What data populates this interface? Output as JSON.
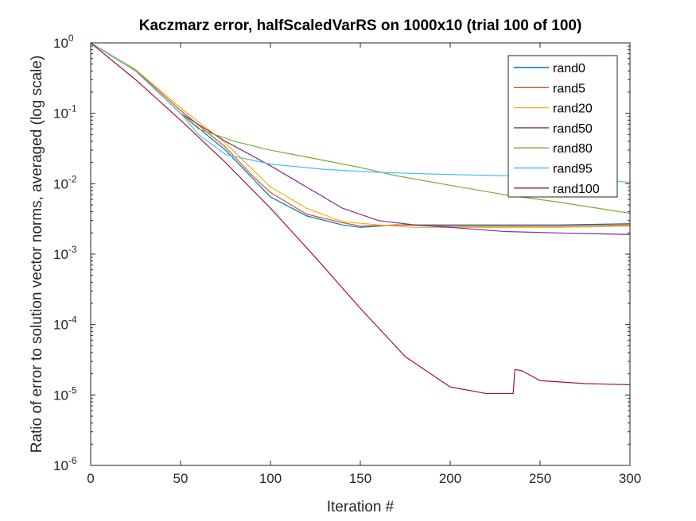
{
  "chart_data": {
    "type": "line",
    "title": "Kaczmarz error, halfScaledVarRS on 1000x10 (trial 100 of 100)",
    "xlabel": "Iteration #",
    "ylabel": "Ratio of error to solution vector norms, averaged (log scale)",
    "xlim": [
      0,
      300
    ],
    "ylim": [
      1e-06,
      1
    ],
    "yscale": "log",
    "x_ticks": [
      "0",
      "50",
      "100",
      "150",
      "200",
      "250",
      "300"
    ],
    "y_ticks": [
      {
        "base": "10",
        "exp": "-6",
        "value": 1e-06
      },
      {
        "base": "10",
        "exp": "-5",
        "value": 1e-05
      },
      {
        "base": "10",
        "exp": "-4",
        "value": 0.0001
      },
      {
        "base": "10",
        "exp": "-3",
        "value": 0.001
      },
      {
        "base": "10",
        "exp": "-2",
        "value": 0.01
      },
      {
        "base": "10",
        "exp": "-1",
        "value": 0.1
      },
      {
        "base": "10",
        "exp": "0",
        "value": 1
      }
    ],
    "grid": false,
    "legend_position": "top-right",
    "series": [
      {
        "name": "rand0",
        "color": "#0072BD",
        "points": [
          [
            0,
            1
          ],
          [
            25,
            0.4
          ],
          [
            50,
            0.1
          ],
          [
            75,
            0.03
          ],
          [
            90,
            0.012
          ],
          [
            100,
            0.0065
          ],
          [
            120,
            0.0035
          ],
          [
            140,
            0.0026
          ],
          [
            150,
            0.0024
          ],
          [
            170,
            0.0026
          ],
          [
            200,
            0.0026
          ],
          [
            230,
            0.0026
          ],
          [
            260,
            0.0026
          ],
          [
            300,
            0.0027
          ]
        ]
      },
      {
        "name": "rand5",
        "color": "#D95319",
        "points": [
          [
            0,
            1
          ],
          [
            25,
            0.41
          ],
          [
            50,
            0.11
          ],
          [
            75,
            0.033
          ],
          [
            90,
            0.013
          ],
          [
            100,
            0.0075
          ],
          [
            120,
            0.0037
          ],
          [
            140,
            0.0028
          ],
          [
            150,
            0.0025
          ],
          [
            170,
            0.0026
          ],
          [
            200,
            0.0025
          ],
          [
            230,
            0.0025
          ],
          [
            260,
            0.0025
          ],
          [
            300,
            0.0026
          ]
        ]
      },
      {
        "name": "rand20",
        "color": "#EDB120",
        "points": [
          [
            0,
            1
          ],
          [
            25,
            0.42
          ],
          [
            50,
            0.12
          ],
          [
            75,
            0.038
          ],
          [
            100,
            0.009
          ],
          [
            120,
            0.0045
          ],
          [
            140,
            0.0029
          ],
          [
            160,
            0.0026
          ],
          [
            180,
            0.0024
          ],
          [
            200,
            0.0024
          ],
          [
            230,
            0.0024
          ],
          [
            260,
            0.0024
          ],
          [
            300,
            0.0025
          ]
        ]
      },
      {
        "name": "rand50",
        "color": "#7E2F8E",
        "points": [
          [
            0,
            1
          ],
          [
            25,
            0.4
          ],
          [
            50,
            0.1
          ],
          [
            75,
            0.04
          ],
          [
            100,
            0.018
          ],
          [
            120,
            0.009
          ],
          [
            140,
            0.0045
          ],
          [
            160,
            0.003
          ],
          [
            180,
            0.0026
          ],
          [
            200,
            0.0024
          ],
          [
            230,
            0.0021
          ],
          [
            260,
            0.002
          ],
          [
            300,
            0.0019
          ]
        ]
      },
      {
        "name": "rand80",
        "color": "#77AC30",
        "points": [
          [
            0,
            1
          ],
          [
            25,
            0.4
          ],
          [
            50,
            0.1
          ],
          [
            60,
            0.06
          ],
          [
            80,
            0.04
          ],
          [
            100,
            0.03
          ],
          [
            120,
            0.024
          ],
          [
            150,
            0.017
          ],
          [
            170,
            0.013
          ],
          [
            200,
            0.0095
          ],
          [
            230,
            0.007
          ],
          [
            260,
            0.0055
          ],
          [
            300,
            0.0038
          ]
        ]
      },
      {
        "name": "rand95",
        "color": "#4DBEEE",
        "points": [
          [
            0,
            1
          ],
          [
            25,
            0.4
          ],
          [
            50,
            0.1
          ],
          [
            60,
            0.05
          ],
          [
            75,
            0.026
          ],
          [
            100,
            0.019
          ],
          [
            130,
            0.016
          ],
          [
            160,
            0.0145
          ],
          [
            200,
            0.0135
          ],
          [
            230,
            0.013
          ],
          [
            260,
            0.012
          ],
          [
            300,
            0.0105
          ]
        ]
      },
      {
        "name": "rand100",
        "color": "#A2142F",
        "points": [
          [
            0,
            1
          ],
          [
            25,
            0.3
          ],
          [
            50,
            0.08
          ],
          [
            75,
            0.02
          ],
          [
            100,
            0.0045
          ],
          [
            125,
            0.0009
          ],
          [
            150,
            0.00017
          ],
          [
            175,
            3.5e-05
          ],
          [
            200,
            1.3e-05
          ],
          [
            220,
            1.05e-05
          ],
          [
            235,
            1.05e-05
          ],
          [
            236,
            2.3e-05
          ],
          [
            240,
            2.2e-05
          ],
          [
            250,
            1.6e-05
          ],
          [
            275,
            1.45e-05
          ],
          [
            300,
            1.4e-05
          ]
        ]
      }
    ]
  }
}
